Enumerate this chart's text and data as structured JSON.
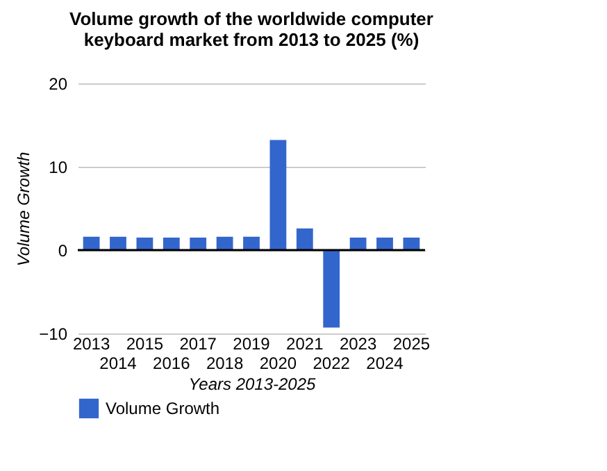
{
  "chart_data": {
    "type": "bar",
    "title": [
      "Volume growth of the worldwide computer",
      "keyboard market from 2013 to 2025 (%)"
    ],
    "xlabel": "Years 2013-2025",
    "ylabel": "Volume Growth",
    "categories": [
      "2013",
      "2014",
      "2015",
      "2016",
      "2017",
      "2018",
      "2019",
      "2020",
      "2021",
      "2022",
      "2023",
      "2024",
      "2025"
    ],
    "series": [
      {
        "name": "Volume Growth",
        "color": "#3366cc",
        "values": [
          1.6,
          1.6,
          1.5,
          1.5,
          1.5,
          1.6,
          1.6,
          13.2,
          2.6,
          -9.3,
          1.5,
          1.5,
          1.5
        ]
      }
    ],
    "ylim": [
      -10,
      20
    ],
    "yticks": [
      -10,
      0,
      10,
      20
    ],
    "grid": "y",
    "legend": "bottom"
  }
}
